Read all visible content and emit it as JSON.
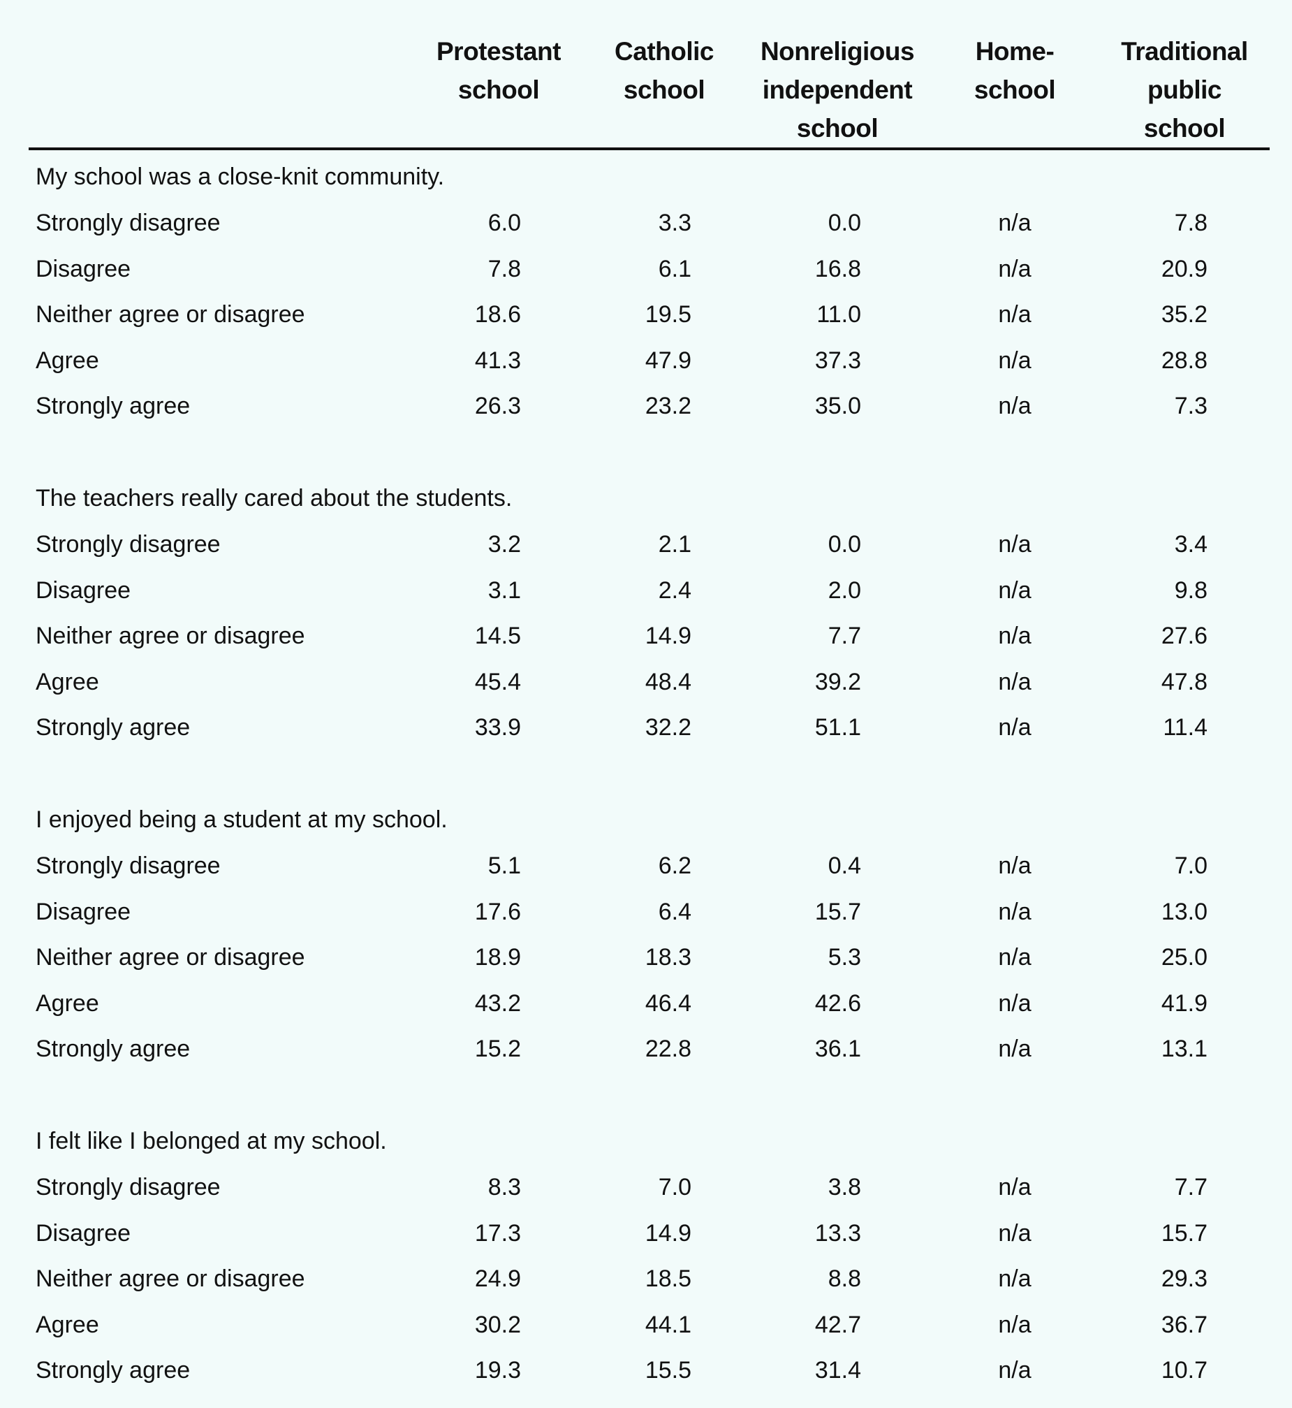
{
  "columns": [
    "Protestant school",
    "Catholic school",
    "Nonreligious independent school",
    "Home-school",
    "Traditional public school"
  ],
  "columns_lines": [
    [
      "Protestant",
      "school"
    ],
    [
      "Catholic",
      "school"
    ],
    [
      "Nonreligious",
      "independent",
      "school"
    ],
    [
      "Home-",
      "school"
    ],
    [
      "Traditional",
      "public",
      "school"
    ]
  ],
  "sections": [
    {
      "title": "My school was a close-knit community.",
      "rows": [
        {
          "label": "Strongly disagree",
          "values": [
            "6.0",
            "3.3",
            "0.0",
            "n/a",
            "7.8"
          ]
        },
        {
          "label": "Disagree",
          "values": [
            "7.8",
            "6.1",
            "16.8",
            "n/a",
            "20.9"
          ]
        },
        {
          "label": "Neither agree or disagree",
          "values": [
            "18.6",
            "19.5",
            "11.0",
            "n/a",
            "35.2"
          ]
        },
        {
          "label": "Agree",
          "values": [
            "41.3",
            "47.9",
            "37.3",
            "n/a",
            "28.8"
          ]
        },
        {
          "label": "Strongly agree",
          "values": [
            "26.3",
            "23.2",
            "35.0",
            "n/a",
            "7.3"
          ]
        }
      ]
    },
    {
      "title": "The teachers really cared about the students.",
      "rows": [
        {
          "label": "Strongly disagree",
          "values": [
            "3.2",
            "2.1",
            "0.0",
            "n/a",
            "3.4"
          ]
        },
        {
          "label": "Disagree",
          "values": [
            "3.1",
            "2.4",
            "2.0",
            "n/a",
            "9.8"
          ]
        },
        {
          "label": "Neither agree or disagree",
          "values": [
            "14.5",
            "14.9",
            "7.7",
            "n/a",
            "27.6"
          ]
        },
        {
          "label": "Agree",
          "values": [
            "45.4",
            "48.4",
            "39.2",
            "n/a",
            "47.8"
          ]
        },
        {
          "label": "Strongly agree",
          "values": [
            "33.9",
            "32.2",
            "51.1",
            "n/a",
            "11.4"
          ]
        }
      ]
    },
    {
      "title": "I enjoyed being a student at my school.",
      "rows": [
        {
          "label": "Strongly disagree",
          "values": [
            "5.1",
            "6.2",
            "0.4",
            "n/a",
            "7.0"
          ]
        },
        {
          "label": "Disagree",
          "values": [
            "17.6",
            "6.4",
            "15.7",
            "n/a",
            "13.0"
          ]
        },
        {
          "label": "Neither agree or disagree",
          "values": [
            "18.9",
            "18.3",
            "5.3",
            "n/a",
            "25.0"
          ]
        },
        {
          "label": "Agree",
          "values": [
            "43.2",
            "46.4",
            "42.6",
            "n/a",
            "41.9"
          ]
        },
        {
          "label": "Strongly agree",
          "values": [
            "15.2",
            "22.8",
            "36.1",
            "n/a",
            "13.1"
          ]
        }
      ]
    },
    {
      "title": "I felt like I belonged at my school.",
      "rows": [
        {
          "label": "Strongly disagree",
          "values": [
            "8.3",
            "7.0",
            "3.8",
            "n/a",
            "7.7"
          ]
        },
        {
          "label": "Disagree",
          "values": [
            "17.3",
            "14.9",
            "13.3",
            "n/a",
            "15.7"
          ]
        },
        {
          "label": "Neither agree or disagree",
          "values": [
            "24.9",
            "18.5",
            "8.8",
            "n/a",
            "29.3"
          ]
        },
        {
          "label": "Agree",
          "values": [
            "30.2",
            "44.1",
            "42.7",
            "n/a",
            "36.7"
          ]
        },
        {
          "label": "Strongly agree",
          "values": [
            "19.3",
            "15.5",
            "31.4",
            "n/a",
            "10.7"
          ]
        }
      ]
    }
  ]
}
